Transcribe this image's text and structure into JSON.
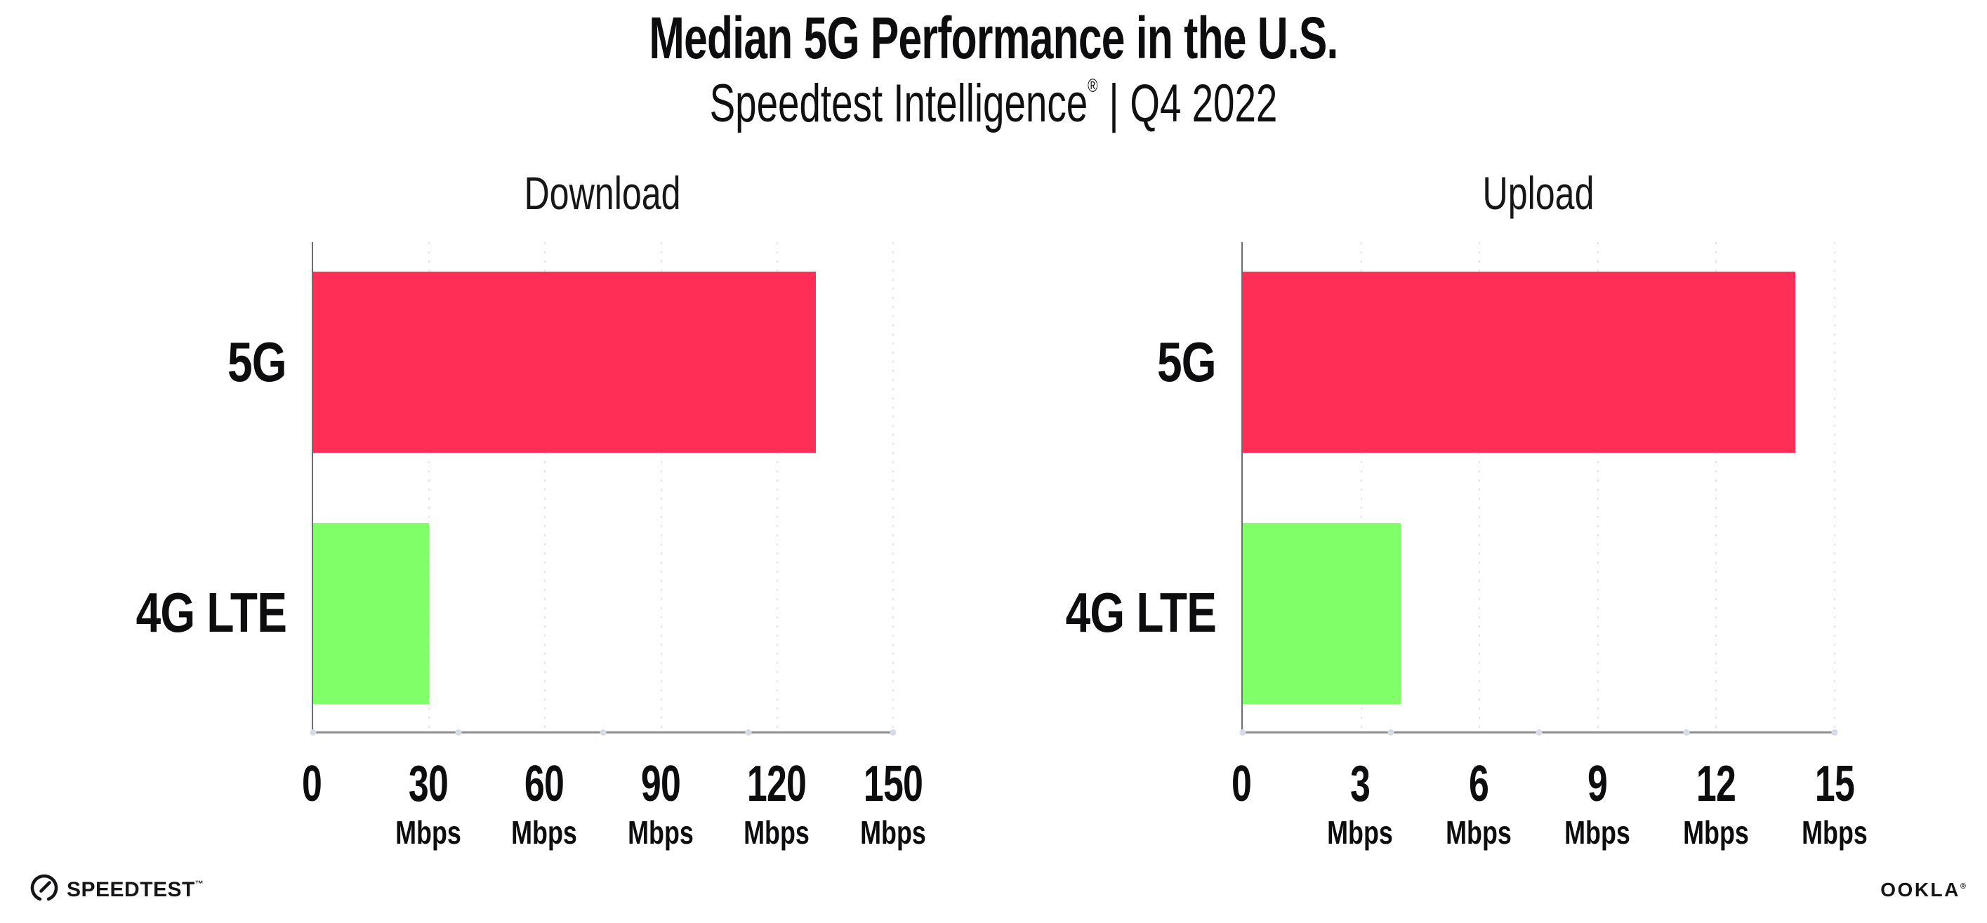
{
  "title": "Median 5G Performance in the U.S.",
  "subtitle": {
    "brand": "Speedtest Intelligence",
    "registered_mark": "®",
    "divider": "|",
    "period": "Q4 2022"
  },
  "colors": {
    "bar_5g": "#ff2e56",
    "bar_4g_lte": "#80ff69",
    "axis_line": "#8e8e94",
    "gridline": "#e3e3ec",
    "text": "#0d0d0f"
  },
  "chart_data": [
    {
      "type": "bar",
      "orientation": "horizontal",
      "title": "Download",
      "categories": [
        "5G",
        "4G LTE"
      ],
      "values": [
        130,
        30
      ],
      "unit": "Mbps",
      "xlim": [
        0,
        150
      ],
      "grid": "vertical-dotted",
      "series_colors": [
        "#ff2e56",
        "#80ff69"
      ],
      "ticks": [
        {
          "label": "0",
          "unit": ""
        },
        {
          "label": "30",
          "unit": "Mbps"
        },
        {
          "label": "60",
          "unit": "Mbps"
        },
        {
          "label": "90",
          "unit": "Mbps"
        },
        {
          "label": "120",
          "unit": "Mbps"
        },
        {
          "label": "150",
          "unit": "Mbps"
        }
      ]
    },
    {
      "type": "bar",
      "orientation": "horizontal",
      "title": "Upload",
      "categories": [
        "5G",
        "4G LTE"
      ],
      "values": [
        14,
        4
      ],
      "unit": "Mbps",
      "xlim": [
        0,
        15
      ],
      "grid": "vertical-dotted",
      "series_colors": [
        "#ff2e56",
        "#80ff69"
      ],
      "ticks": [
        {
          "label": "0",
          "unit": ""
        },
        {
          "label": "3",
          "unit": "Mbps"
        },
        {
          "label": "6",
          "unit": "Mbps"
        },
        {
          "label": "9",
          "unit": "Mbps"
        },
        {
          "label": "12",
          "unit": "Mbps"
        },
        {
          "label": "15",
          "unit": "Mbps"
        }
      ]
    }
  ],
  "footer": {
    "speedtest_wordmark": "SPEEDTEST",
    "speedtest_trademark": "™",
    "ookla_wordmark": "OOKLA",
    "ookla_registered": "®"
  }
}
